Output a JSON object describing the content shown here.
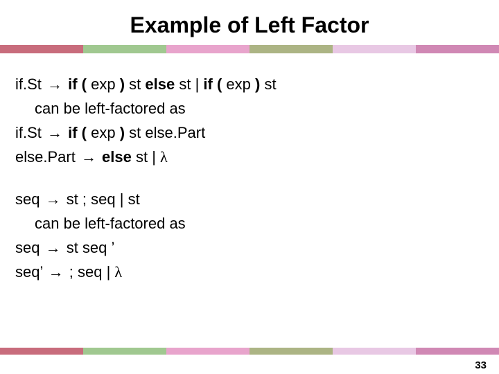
{
  "title": "Example of Left Factor",
  "stripe_colors": [
    "#c86c7c",
    "#a0c890",
    "#e8a4cc",
    "#acb484",
    "#e8c8e4",
    "#d088b4"
  ],
  "block1": {
    "l1": {
      "p1": "if.St ",
      "arrow": "→",
      "p2_b": " if ( ",
      "p3": "exp",
      "p4_b": " ) ",
      "p5": "st",
      "p6_b": " else ",
      "p7": "st |",
      "p8_b": " if ( ",
      "p9": "exp",
      "p10_b": " ) ",
      "p11": "st"
    },
    "l2": "can be left-factored as",
    "l3": {
      "p1": "if.St ",
      "arrow": "→",
      "p2_b": " if ( ",
      "p3": "exp",
      "p4_b": " ) ",
      "p5": "st else.Part"
    },
    "l4": {
      "p1": "else.Part ",
      "arrow": "→",
      "p2_b": " else ",
      "p3": "st | ",
      "lambda": "λ"
    }
  },
  "block2": {
    "l1": {
      "p1": "seq ",
      "arrow": "→",
      "p2": " st ; seq | st"
    },
    "l2": "can be left-factored as",
    "l3": {
      "p1": "seq ",
      "arrow": "→",
      "p2": " st seq ’"
    },
    "l4": {
      "p1": "seq’ ",
      "arrow": "→",
      "p2": " ; seq | ",
      "lambda": "λ"
    }
  },
  "page_number": "33"
}
